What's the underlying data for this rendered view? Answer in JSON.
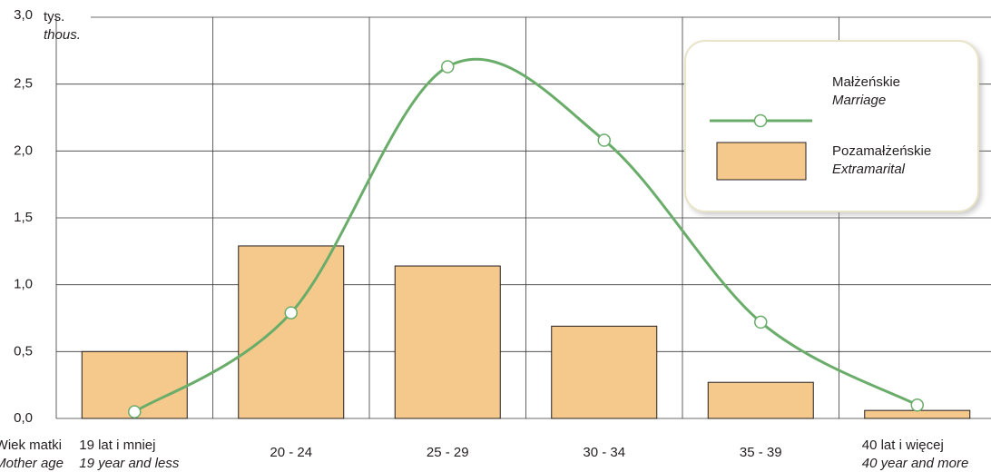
{
  "chart_data": {
    "type": "bar",
    "y_unit": "tys.",
    "y_unit_en": "thous.",
    "x_label": "Wiek matki",
    "x_label_en": "Mother age",
    "categories": [
      "19 lat i mniej",
      "20 - 24",
      "25 - 29",
      "30 - 34",
      "35 - 39",
      "40 lat i więcej"
    ],
    "category_translations": [
      "19 year and less",
      null,
      null,
      null,
      null,
      "40 year and more"
    ],
    "series": [
      {
        "name": "Pozamałżeńskie",
        "name_en": "Extramarital",
        "type": "bar",
        "color": "#f5c98c",
        "values": [
          0.5,
          1.29,
          1.14,
          0.69,
          0.27,
          0.06
        ]
      },
      {
        "name": "Małżeńskie",
        "name_en": "Marriage",
        "type": "line",
        "color": "#6aad6a",
        "values": [
          0.05,
          0.79,
          2.63,
          2.08,
          0.72,
          0.1
        ]
      }
    ],
    "ylim": [
      0,
      3
    ],
    "yticks": [
      {
        "value": 0,
        "label": "0,0"
      },
      {
        "value": 0.5,
        "label": "0,5"
      },
      {
        "value": 1,
        "label": "1,0"
      },
      {
        "value": 1.5,
        "label": "1,5"
      },
      {
        "value": 2,
        "label": "2,0"
      },
      {
        "value": 2.5,
        "label": "2,5"
      },
      {
        "value": 3,
        "label": "3,0"
      }
    ],
    "grid": true
  }
}
